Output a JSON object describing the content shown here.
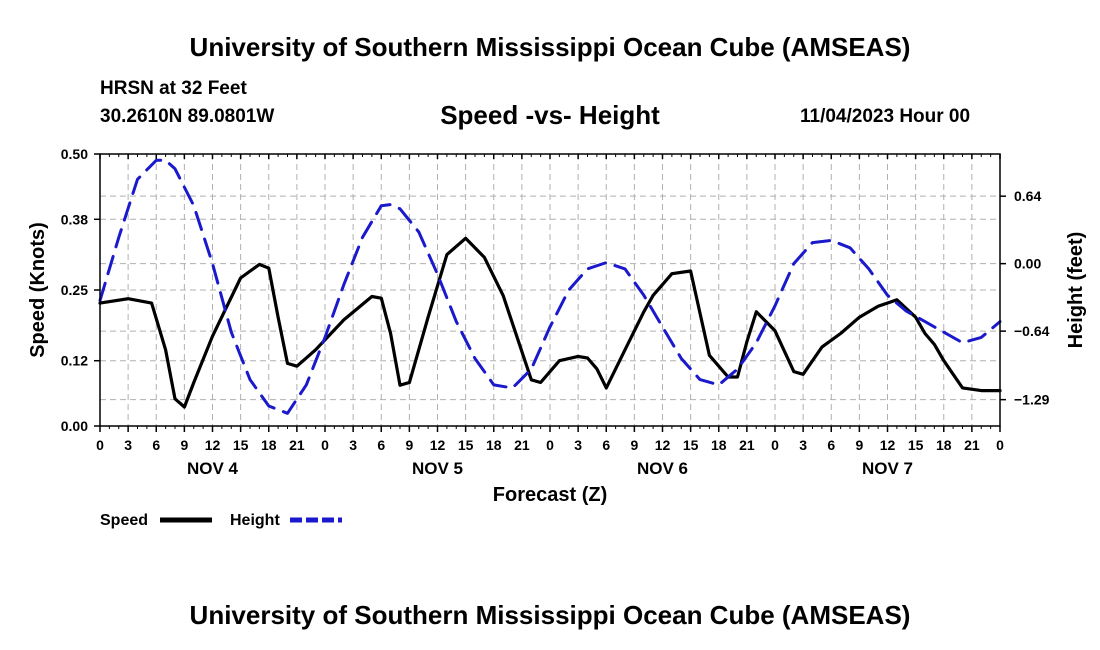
{
  "header": {
    "title": "University of Southern Mississippi Ocean Cube (AMSEAS)",
    "station": "HRSN at 32 Feet",
    "coords": "30.2610N  89.0801W",
    "date": "11/04/2023 Hour 00"
  },
  "footer": {
    "title": "University of Southern Mississippi Ocean Cube (AMSEAS)"
  },
  "colors": {
    "speed": "#000000",
    "height": "#1a1acc",
    "grid": "#b0b0b0"
  },
  "chart_data": {
    "type": "line",
    "title": "Speed -vs- Height",
    "xlabel": "Forecast (Z)",
    "ylabel": "Speed (Knots)",
    "ylabel_right": "Height (feet)",
    "xlim": [
      0,
      96
    ],
    "ylim": [
      0,
      0.5
    ],
    "ylim_right": [
      -1.54,
      1.04
    ],
    "x_ticks": [
      0,
      3,
      6,
      9,
      12,
      15,
      18,
      21,
      24,
      27,
      30,
      33,
      36,
      39,
      42,
      45,
      48,
      51,
      54,
      57,
      60,
      63,
      66,
      69,
      72,
      75,
      78,
      81,
      84,
      87,
      90,
      93,
      96
    ],
    "x_tick_labels": [
      "0",
      "3",
      "6",
      "9",
      "12",
      "15",
      "18",
      "21",
      "0",
      "3",
      "6",
      "9",
      "12",
      "15",
      "18",
      "21",
      "0",
      "3",
      "6",
      "9",
      "12",
      "15",
      "18",
      "21",
      "0",
      "3",
      "6",
      "9",
      "12",
      "15",
      "18",
      "21",
      "0"
    ],
    "y_ticks": [
      0,
      0.12,
      0.25,
      0.38,
      0.5
    ],
    "y_tick_labels": [
      "0.00",
      "0.12",
      "0.25",
      "0.38",
      "0.50"
    ],
    "y_ticks_right": [
      -1.29,
      -0.64,
      0.0,
      0.64
    ],
    "y_tick_labels_right": [
      "−1.29",
      "−0.64",
      "0.00",
      "0.64"
    ],
    "day_labels": [
      {
        "label": "NOV 4",
        "x": 12
      },
      {
        "label": "NOV 5",
        "x": 36
      },
      {
        "label": "NOV 6",
        "x": 60
      },
      {
        "label": "NOV 7",
        "x": 84
      }
    ],
    "legend": [
      {
        "name": "Speed",
        "style": "solid"
      },
      {
        "name": "Height",
        "style": "dashed"
      }
    ],
    "series": [
      {
        "name": "Speed",
        "axis": "left",
        "x": [
          0,
          3,
          5.5,
          7,
          8,
          9,
          10,
          12,
          15,
          17,
          18,
          19,
          20,
          21,
          23,
          26,
          29,
          30,
          31,
          32,
          33,
          35,
          37,
          39,
          41,
          43,
          46,
          47,
          49,
          51,
          52,
          53,
          54,
          56,
          58,
          59,
          61,
          63,
          65,
          67,
          68,
          69,
          70,
          72,
          74,
          75,
          77,
          79,
          81,
          83,
          85,
          87,
          88,
          89,
          90,
          92,
          94,
          96
        ],
        "y": [
          0.226,
          0.234,
          0.226,
          0.14,
          0.05,
          0.035,
          0.08,
          0.165,
          0.272,
          0.297,
          0.29,
          0.2,
          0.115,
          0.11,
          0.14,
          0.195,
          0.238,
          0.235,
          0.17,
          0.075,
          0.08,
          0.2,
          0.315,
          0.345,
          0.31,
          0.24,
          0.085,
          0.08,
          0.12,
          0.128,
          0.125,
          0.105,
          0.07,
          0.14,
          0.21,
          0.24,
          0.28,
          0.285,
          0.13,
          0.09,
          0.09,
          0.155,
          0.21,
          0.175,
          0.1,
          0.095,
          0.145,
          0.17,
          0.2,
          0.22,
          0.232,
          0.2,
          0.17,
          0.15,
          0.12,
          0.07,
          0.065,
          0.065
        ]
      },
      {
        "name": "Height",
        "axis": "right",
        "x": [
          0,
          2,
          4,
          6,
          7,
          8,
          10,
          12,
          14,
          16,
          18,
          20,
          22,
          24,
          26,
          28,
          30,
          31,
          32,
          34,
          36,
          38,
          40,
          42,
          44,
          46,
          48,
          50,
          52,
          54,
          56,
          58,
          60,
          62,
          64,
          66,
          68,
          70,
          72,
          74,
          76,
          78,
          80,
          82,
          84,
          86,
          88,
          90,
          92,
          94,
          96
        ],
        "y": [
          -0.35,
          0.25,
          0.8,
          0.98,
          0.98,
          0.9,
          0.55,
          0.0,
          -0.65,
          -1.1,
          -1.35,
          -1.42,
          -1.15,
          -0.7,
          -0.2,
          0.25,
          0.55,
          0.56,
          0.52,
          0.3,
          -0.1,
          -0.55,
          -0.9,
          -1.15,
          -1.18,
          -1.0,
          -0.6,
          -0.25,
          -0.05,
          0.01,
          -0.05,
          -0.3,
          -0.6,
          -0.9,
          -1.1,
          -1.15,
          -1.0,
          -0.75,
          -0.4,
          0.0,
          0.2,
          0.22,
          0.15,
          -0.05,
          -0.3,
          -0.45,
          -0.55,
          -0.65,
          -0.75,
          -0.7,
          -0.55
        ]
      }
    ]
  }
}
